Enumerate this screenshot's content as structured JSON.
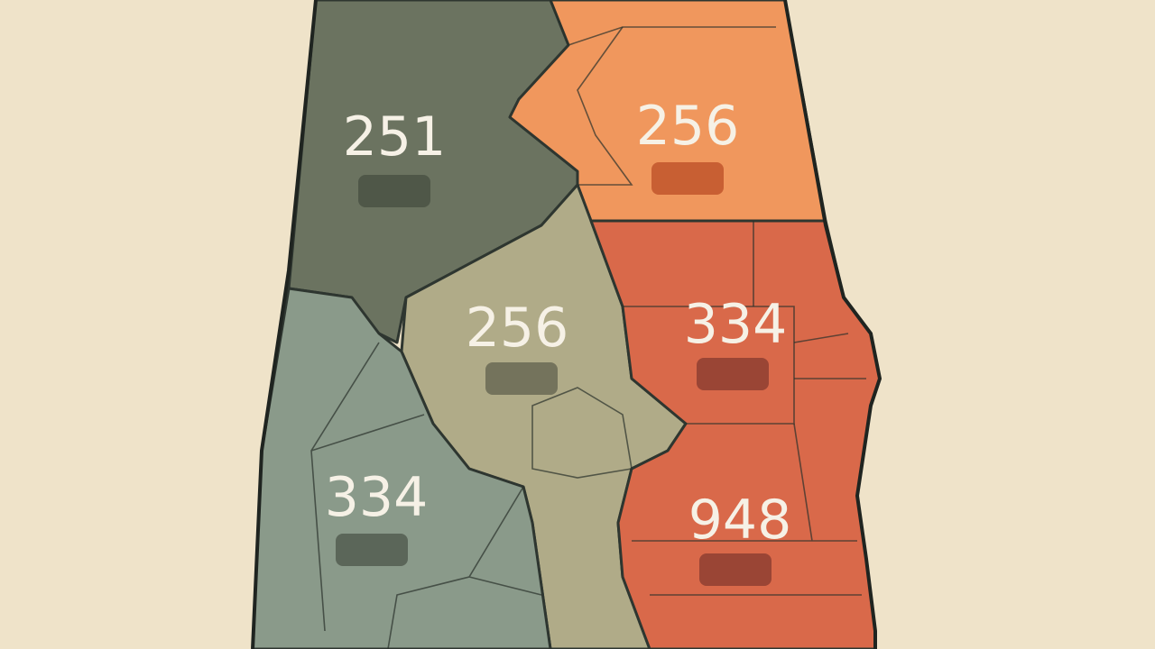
{
  "map": {
    "background_color": "#efe3c9",
    "regions": [
      {
        "code": "251",
        "color": "#6b7360",
        "icon": "phone-icon",
        "icon_color": "#4f5748"
      },
      {
        "code": "256",
        "color": "#f0975d",
        "icon": "phone-icon",
        "icon_color": "#c85f33"
      },
      {
        "code": "256",
        "color": "#b0ab88",
        "icon": "phone-icon",
        "icon_color": "#74735c"
      },
      {
        "code": "334",
        "color": "#d9694a",
        "icon": "phone-icon",
        "icon_color": "#9a4535"
      },
      {
        "code": "334",
        "color": "#8a9a8a",
        "icon": "phone-icon",
        "icon_color": "#5b6659"
      },
      {
        "code": "948",
        "color": "#d9694a",
        "icon": "phone-icon",
        "icon_color": "#9a4535"
      }
    ]
  }
}
